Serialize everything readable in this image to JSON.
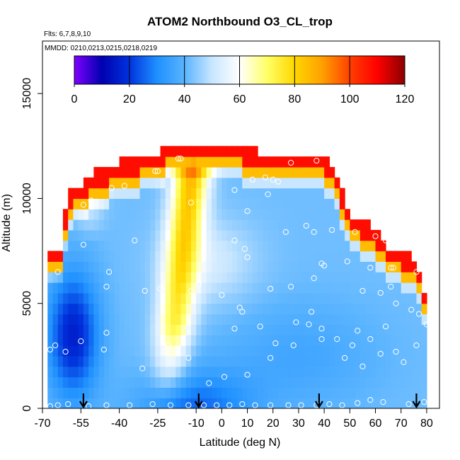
{
  "chart_data": {
    "type": "heatmap",
    "title": "ATOM2 Northbound O3_CL_trop",
    "flights_label": "Flts: 6,7,8,9,10",
    "dates_label": "MMDD: 0210,0213,0215,0218,0219",
    "xlabel": "Latitude (deg N)",
    "ylabel": "Altitude (m)",
    "xlim": [
      -70,
      85
    ],
    "ylim": [
      0,
      17500
    ],
    "x_ticks": [
      -70,
      -55,
      -40,
      -25,
      -10,
      0,
      10,
      20,
      30,
      40,
      50,
      60,
      70,
      80
    ],
    "y_ticks": [
      0,
      5000,
      10000,
      15000
    ],
    "colorbar": {
      "min": 0,
      "max": 120,
      "ticks": [
        0,
        20,
        40,
        60,
        80,
        100,
        120
      ],
      "colors": [
        "#8000ff",
        "#0000b0",
        "#0033dd",
        "#1e90ff",
        "#5ab4ff",
        "#c8e6ff",
        "#ffffff",
        "#ffff66",
        "#ffd700",
        "#ffa000",
        "#ff4000",
        "#ff0000",
        "#8b0000"
      ]
    },
    "field": {
      "lat_min": -68,
      "lat_max": 80,
      "lat_step": 2,
      "alt_step": 500,
      "alt_top": 12500,
      "top_profile": [
        {
          "lat": -68,
          "alt": 7500
        },
        {
          "lat": -63,
          "alt": 7500
        },
        {
          "lat": -60,
          "alt": 10000
        },
        {
          "lat": -55,
          "alt": 10500
        },
        {
          "lat": -50,
          "alt": 11000
        },
        {
          "lat": -40,
          "alt": 11500
        },
        {
          "lat": -25,
          "alt": 12000
        },
        {
          "lat": -20,
          "alt": 12500
        },
        {
          "lat": 0,
          "alt": 12500
        },
        {
          "lat": 15,
          "alt": 12000
        },
        {
          "lat": 38,
          "alt": 12000
        },
        {
          "lat": 45,
          "alt": 11000
        },
        {
          "lat": 50,
          "alt": 9000
        },
        {
          "lat": 58,
          "alt": 8500
        },
        {
          "lat": 65,
          "alt": 7500
        },
        {
          "lat": 75,
          "alt": 7000
        },
        {
          "lat": 78,
          "alt": 6000
        },
        {
          "lat": 80,
          "alt": 5000
        }
      ]
    },
    "sample_points": [
      {
        "lat": -67,
        "alt": 100
      },
      {
        "lat": -64,
        "alt": 150
      },
      {
        "lat": -60,
        "alt": 200
      },
      {
        "lat": -52,
        "alt": 100
      },
      {
        "lat": -45,
        "alt": 150
      },
      {
        "lat": -36,
        "alt": 150
      },
      {
        "lat": -27,
        "alt": 200
      },
      {
        "lat": -20,
        "alt": 150
      },
      {
        "lat": -13,
        "alt": 150
      },
      {
        "lat": -7,
        "alt": 150
      },
      {
        "lat": -2,
        "alt": 150
      },
      {
        "lat": 3,
        "alt": 150
      },
      {
        "lat": 8,
        "alt": 200
      },
      {
        "lat": 13,
        "alt": 150
      },
      {
        "lat": 19,
        "alt": 150
      },
      {
        "lat": 26,
        "alt": 150
      },
      {
        "lat": 31,
        "alt": 150
      },
      {
        "lat": 37,
        "alt": 150
      },
      {
        "lat": 42,
        "alt": 200
      },
      {
        "lat": 47,
        "alt": 150
      },
      {
        "lat": 53,
        "alt": 250
      },
      {
        "lat": 58,
        "alt": 400
      },
      {
        "lat": 63,
        "alt": 300
      },
      {
        "lat": 73,
        "alt": 200
      },
      {
        "lat": 79,
        "alt": 300
      },
      {
        "lat": -67,
        "alt": 2800
      },
      {
        "lat": -65,
        "alt": 3000
      },
      {
        "lat": -61,
        "alt": 2700
      },
      {
        "lat": -55,
        "alt": 3200
      },
      {
        "lat": -46,
        "alt": 2800
      },
      {
        "lat": -45,
        "alt": 3600
      },
      {
        "lat": -31,
        "alt": 1900
      },
      {
        "lat": -22,
        "alt": 2700
      },
      {
        "lat": -21,
        "alt": 3000
      },
      {
        "lat": -13,
        "alt": 2400
      },
      {
        "lat": -5,
        "alt": 1200
      },
      {
        "lat": 1,
        "alt": 1500
      },
      {
        "lat": 5,
        "alt": 3800
      },
      {
        "lat": 10,
        "alt": 1600
      },
      {
        "lat": 15,
        "alt": 3900
      },
      {
        "lat": 19,
        "alt": 2400
      },
      {
        "lat": 21,
        "alt": 3100
      },
      {
        "lat": 28,
        "alt": 3000
      },
      {
        "lat": 29,
        "alt": 4100
      },
      {
        "lat": 34,
        "alt": 4000
      },
      {
        "lat": 35,
        "alt": 4600
      },
      {
        "lat": 39,
        "alt": 3800
      },
      {
        "lat": 39,
        "alt": 3300
      },
      {
        "lat": 45,
        "alt": 3300
      },
      {
        "lat": 48,
        "alt": 2400
      },
      {
        "lat": 51,
        "alt": 3000
      },
      {
        "lat": 53,
        "alt": 3700
      },
      {
        "lat": 55,
        "alt": 2000
      },
      {
        "lat": 58,
        "alt": 3300
      },
      {
        "lat": 62,
        "alt": 2600
      },
      {
        "lat": 64,
        "alt": 3900
      },
      {
        "lat": 68,
        "alt": 2700
      },
      {
        "lat": 71,
        "alt": 2200
      },
      {
        "lat": 76,
        "alt": 3000
      },
      {
        "lat": 80,
        "alt": 4000
      },
      {
        "lat": -64,
        "alt": 6500
      },
      {
        "lat": -45,
        "alt": 5800
      },
      {
        "lat": -44,
        "alt": 6500
      },
      {
        "lat": -30,
        "alt": 5600
      },
      {
        "lat": -24,
        "alt": 5700
      },
      {
        "lat": -12,
        "alt": 5600
      },
      {
        "lat": -9,
        "alt": 5900
      },
      {
        "lat": 0,
        "alt": 5400
      },
      {
        "lat": 7,
        "alt": 4800
      },
      {
        "lat": 8,
        "alt": 4600
      },
      {
        "lat": 19,
        "alt": 5700
      },
      {
        "lat": 27,
        "alt": 5800
      },
      {
        "lat": 36,
        "alt": 6200
      },
      {
        "lat": 39,
        "alt": 6900
      },
      {
        "lat": 40,
        "alt": 6800
      },
      {
        "lat": 49,
        "alt": 7000
      },
      {
        "lat": 55,
        "alt": 5600
      },
      {
        "lat": 62,
        "alt": 5500
      },
      {
        "lat": 66,
        "alt": 5800
      },
      {
        "lat": 66,
        "alt": 6700
      },
      {
        "lat": 67,
        "alt": 6700
      },
      {
        "lat": 68,
        "alt": 5000
      },
      {
        "lat": 74,
        "alt": 4700
      },
      {
        "lat": 77,
        "alt": 4500
      },
      {
        "lat": 58,
        "alt": 6700
      },
      {
        "lat": 76,
        "alt": 6500
      },
      {
        "lat": 10,
        "alt": 7200
      },
      {
        "lat": -54,
        "alt": 7800
      },
      {
        "lat": -34,
        "alt": 8000
      },
      {
        "lat": -21,
        "alt": 8200
      },
      {
        "lat": 5,
        "alt": 8000
      },
      {
        "lat": 9,
        "alt": 7600
      },
      {
        "lat": 25,
        "alt": 8400
      },
      {
        "lat": 33,
        "alt": 8700
      },
      {
        "lat": 36,
        "alt": 8400
      },
      {
        "lat": 43,
        "alt": 8500
      },
      {
        "lat": 52,
        "alt": 8400
      },
      {
        "lat": 60,
        "alt": 8200
      },
      {
        "lat": 64,
        "alt": 8000
      },
      {
        "lat": -54,
        "alt": 9700
      },
      {
        "lat": -51,
        "alt": 9900
      },
      {
        "lat": -43,
        "alt": 10500
      },
      {
        "lat": -38,
        "alt": 10600
      },
      {
        "lat": -12,
        "alt": 9800
      },
      {
        "lat": 10,
        "alt": 9400
      },
      {
        "lat": 5,
        "alt": 10400
      },
      {
        "lat": 18,
        "alt": 10200
      },
      {
        "lat": 12,
        "alt": 10900
      },
      {
        "lat": 17,
        "alt": 11000
      },
      {
        "lat": 20,
        "alt": 10900
      },
      {
        "lat": 22,
        "alt": 10800
      },
      {
        "lat": -26,
        "alt": 11300
      },
      {
        "lat": -25,
        "alt": 11300
      },
      {
        "lat": -17,
        "alt": 11900
      },
      {
        "lat": -16,
        "alt": 11900
      },
      {
        "lat": 27,
        "alt": 11700
      },
      {
        "lat": 37,
        "alt": 11800
      }
    ],
    "arrows_lat": [
      -54,
      -9,
      38,
      76
    ]
  }
}
